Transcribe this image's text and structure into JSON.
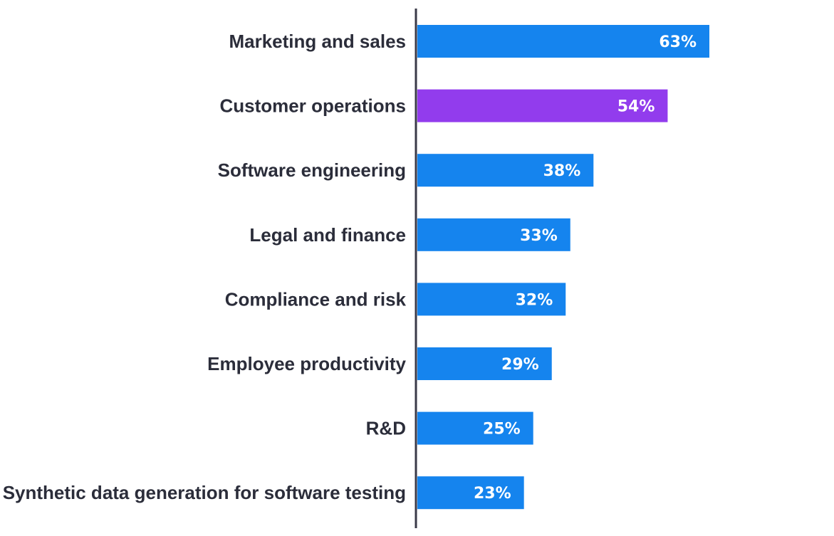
{
  "chart_data": {
    "type": "bar",
    "orientation": "horizontal",
    "categories": [
      "Marketing and sales",
      "Customer operations",
      "Software engineering",
      "Legal and finance",
      "Compliance and risk",
      "Employee productivity",
      "R&D",
      "Synthetic data generation for software testing"
    ],
    "values": [
      63,
      54,
      38,
      33,
      32,
      29,
      25,
      23
    ],
    "value_labels": [
      "63%",
      "54%",
      "38%",
      "33%",
      "32%",
      "29%",
      "25%",
      "23%"
    ],
    "unit": "%",
    "highlighted_index": 1,
    "colors": {
      "default": "#1584ee",
      "highlight": "#923ced",
      "axis": "#3a3a48",
      "label": "#2b2d3a"
    },
    "xlim": [
      0,
      63
    ],
    "grid": false,
    "legend": "none"
  }
}
